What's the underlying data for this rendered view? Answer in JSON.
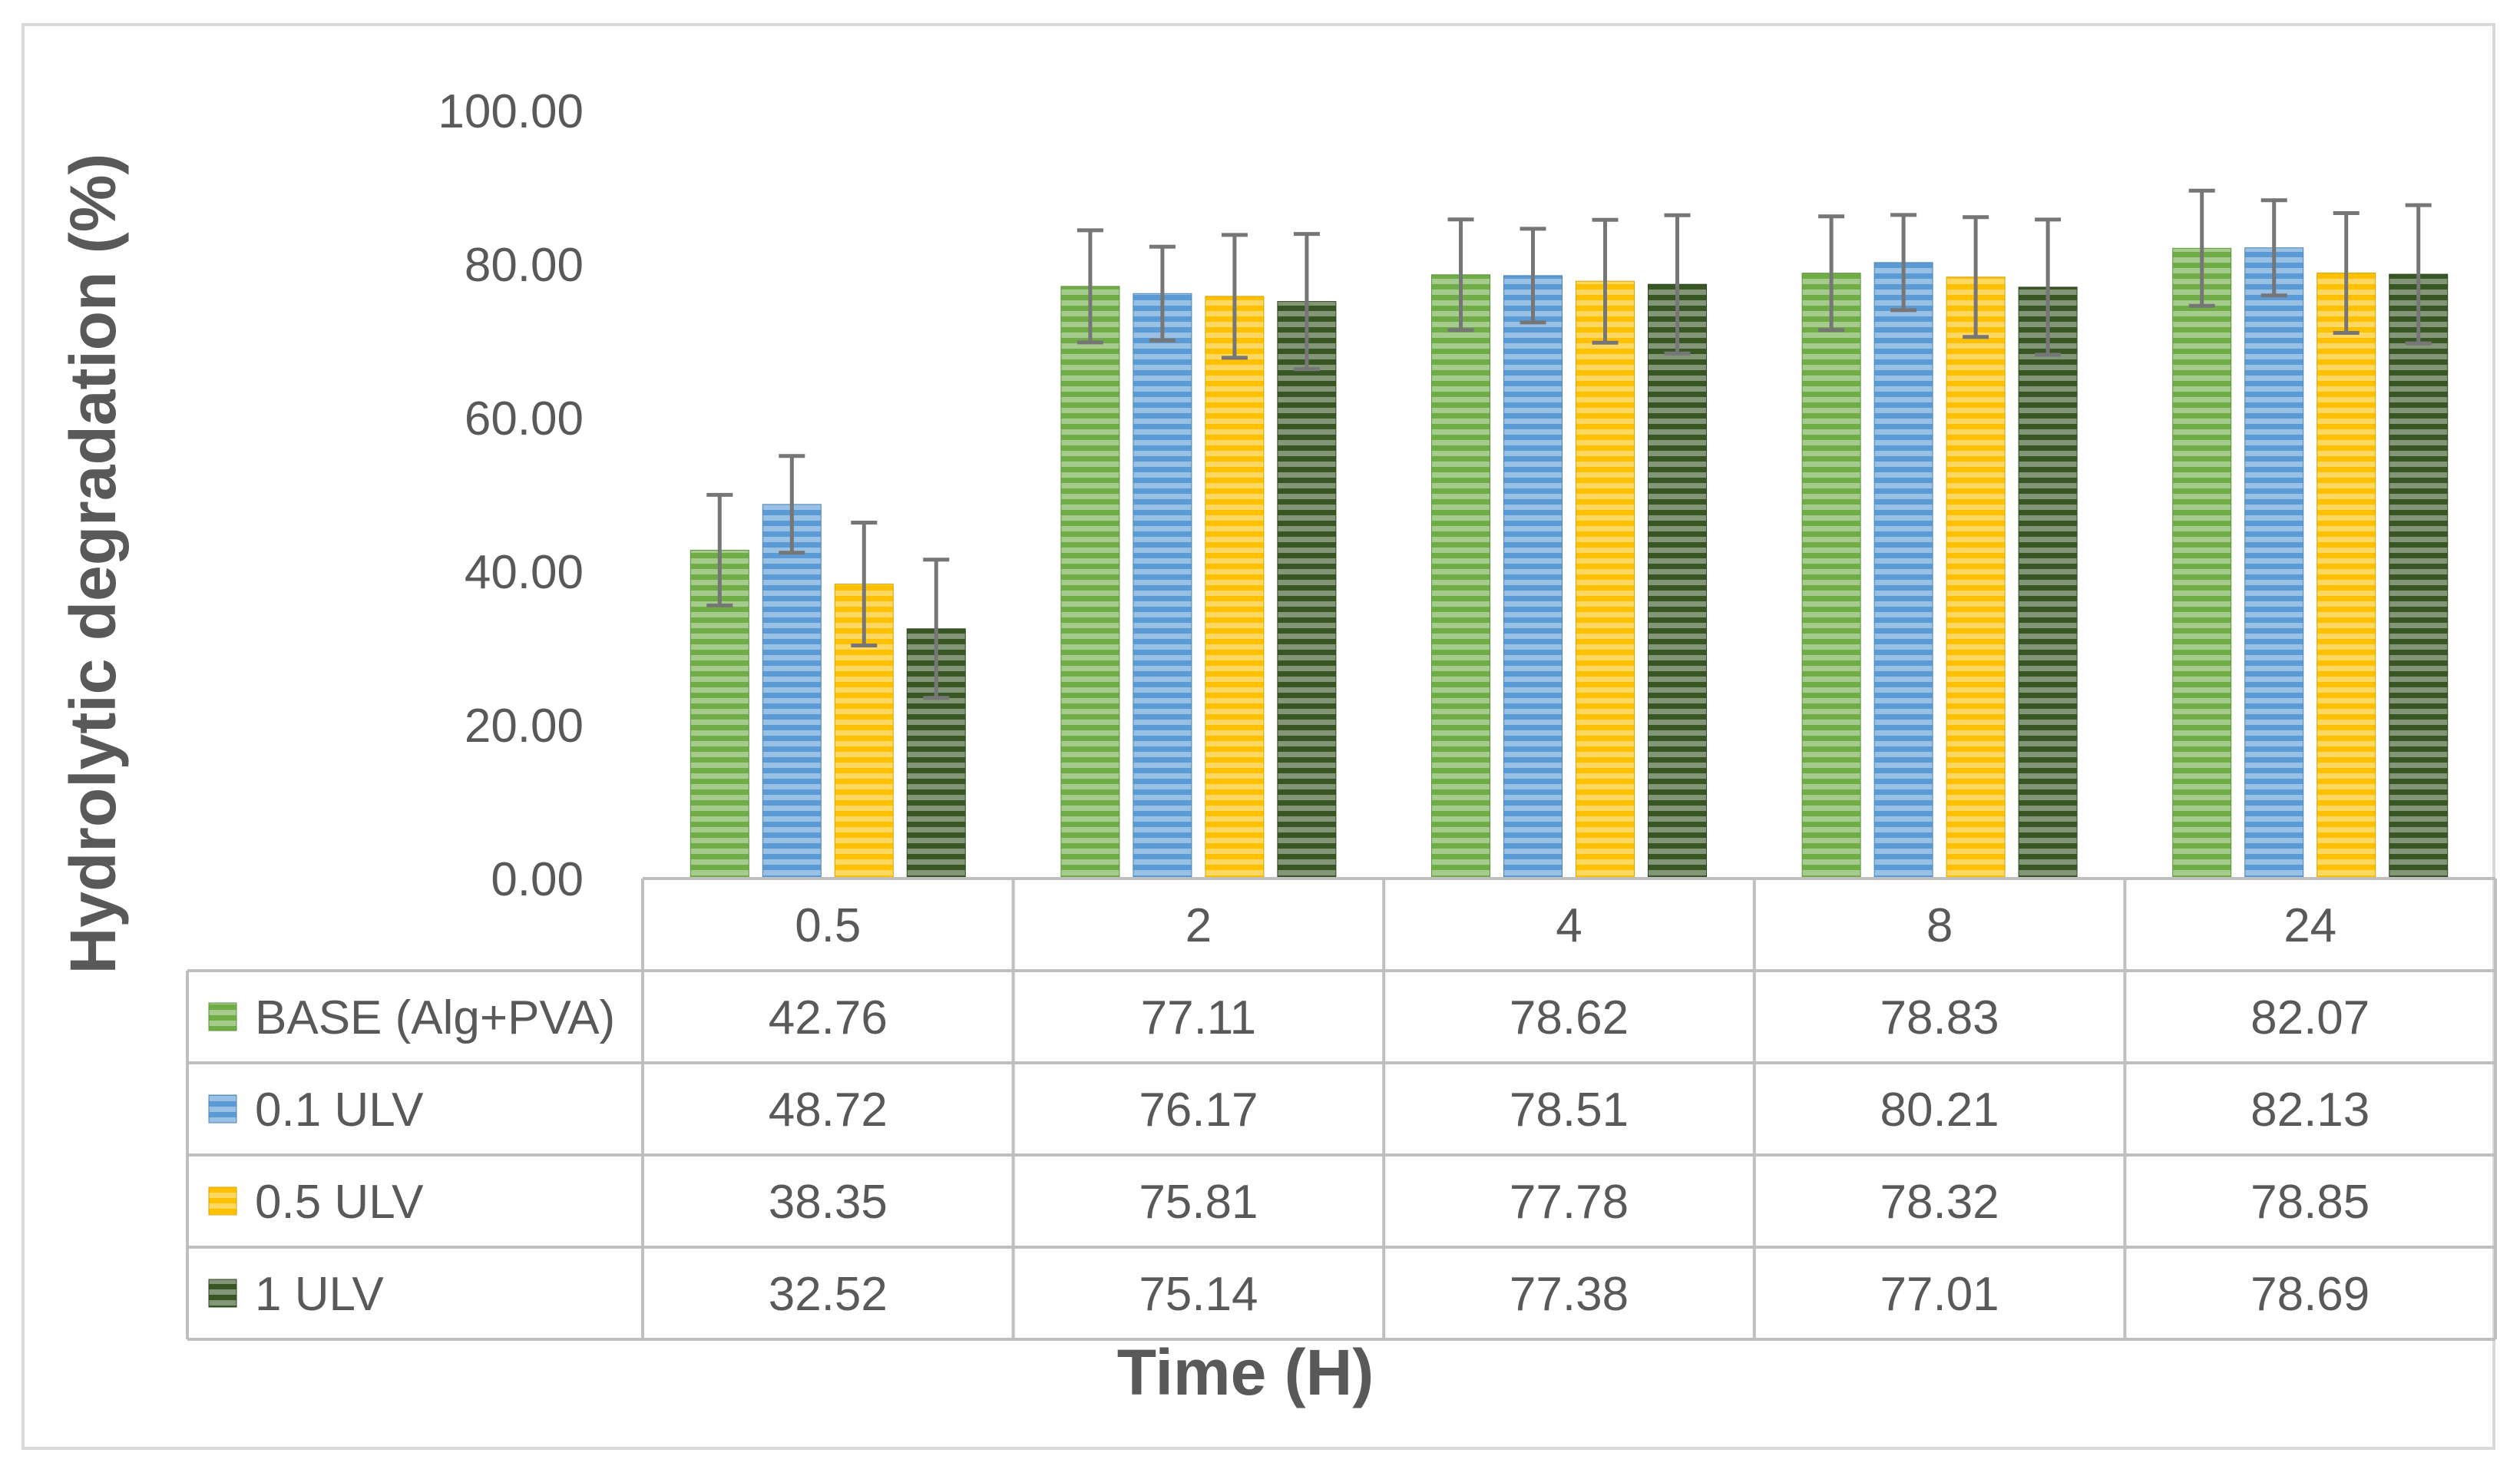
{
  "chart_data": {
    "type": "bar",
    "title": "",
    "xlabel": "Time (H)",
    "ylabel": "Hydrolytic degradation (%)",
    "ylim": [
      0,
      100
    ],
    "yticks": [
      "0.00",
      "20.00",
      "40.00",
      "60.00",
      "80.00",
      "100.00"
    ],
    "categories": [
      "0.5",
      "2",
      "4",
      "8",
      "24"
    ],
    "grid": false,
    "legend": "data-table",
    "series": [
      {
        "name": "BASE (Alg+PVA)",
        "color": "#70ad47",
        "values": [
          42.76,
          77.11,
          78.62,
          78.83,
          82.07
        ],
        "errors": [
          7.2,
          7.3,
          7.2,
          7.4,
          7.5
        ],
        "labels": [
          "42.76",
          "77.11",
          "78.62",
          "78.83",
          "82.07"
        ]
      },
      {
        "name": "0.1 ULV",
        "color": "#5b9bd5",
        "values": [
          48.72,
          76.17,
          78.51,
          80.21,
          82.13
        ],
        "errors": [
          6.3,
          6.1,
          6.1,
          6.2,
          6.2
        ],
        "labels": [
          "48.72",
          "76.17",
          "78.51",
          "80.21",
          "82.13"
        ]
      },
      {
        "name": "0.5 ULV",
        "color": "#ffc000",
        "values": [
          38.35,
          75.81,
          77.78,
          78.32,
          78.85
        ],
        "errors": [
          8.0,
          8.0,
          8.0,
          7.8,
          7.8
        ],
        "labels": [
          "38.35",
          "75.81",
          "77.78",
          "78.32",
          "78.85"
        ]
      },
      {
        "name": "1 ULV",
        "color": "#375623",
        "values": [
          32.52,
          75.14,
          77.38,
          77.01,
          78.69
        ],
        "errors": [
          9.0,
          8.8,
          9.0,
          8.8,
          9.0
        ],
        "labels": [
          "32.52",
          "75.14",
          "77.38",
          "77.01",
          "78.69"
        ]
      }
    ]
  }
}
